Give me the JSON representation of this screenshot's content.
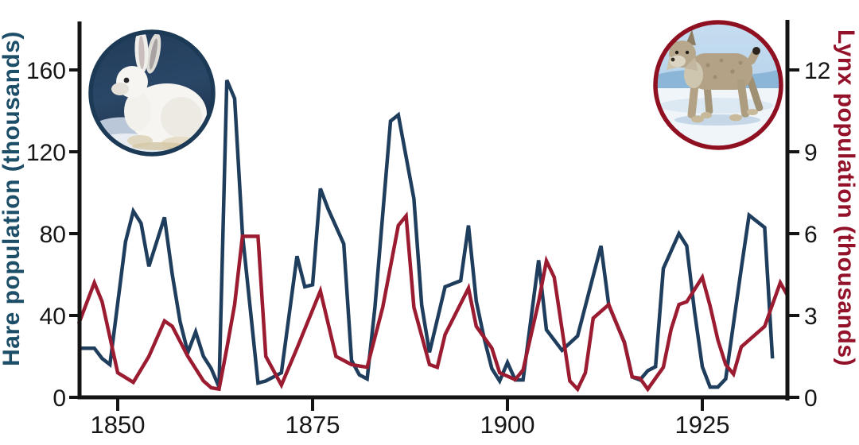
{
  "chart_data": {
    "type": "line",
    "title": "",
    "x_axis": {
      "tick_labels": [
        "1850",
        "1875",
        "1900",
        "1925"
      ],
      "tick_values": [
        1850,
        1875,
        1900,
        1925
      ],
      "range_years": [
        1845,
        1936
      ],
      "grid": false
    },
    "left_axis": {
      "title": "Hare population (thousands)",
      "color": "#1d4e68",
      "tick_labels": [
        "160",
        "120",
        "80",
        "40",
        "0"
      ],
      "tick_values": [
        160,
        120,
        80,
        40,
        0
      ],
      "lim": [
        0,
        184
      ]
    },
    "right_axis": {
      "title": "Lynx population (thousands)",
      "color": "#93122a",
      "tick_labels": [
        "12",
        "9",
        "6",
        "3",
        "0"
      ],
      "tick_values": [
        12,
        9,
        6,
        3,
        0
      ],
      "lim": [
        0,
        13.8
      ]
    },
    "legend": "none",
    "series": [
      {
        "name": "Hare population (thousands)",
        "axis": "left",
        "unit": "thousands",
        "color": "#1f3d5c",
        "points": [
          [
            1845,
            24
          ],
          [
            1847,
            24
          ],
          [
            1848,
            19
          ],
          [
            1849,
            16
          ],
          [
            1851,
            76
          ],
          [
            1852,
            91
          ],
          [
            1853,
            85
          ],
          [
            1854,
            64
          ],
          [
            1856,
            88
          ],
          [
            1857,
            60
          ],
          [
            1858,
            37
          ],
          [
            1859,
            22
          ],
          [
            1860,
            32
          ],
          [
            1861,
            20
          ],
          [
            1862,
            14
          ],
          [
            1863,
            5
          ],
          [
            1864,
            155
          ],
          [
            1865,
            146
          ],
          [
            1866,
            80
          ],
          [
            1868,
            7
          ],
          [
            1869,
            8
          ],
          [
            1871,
            12
          ],
          [
            1873,
            69
          ],
          [
            1874,
            54
          ],
          [
            1875,
            55
          ],
          [
            1876,
            102
          ],
          [
            1877,
            92
          ],
          [
            1879,
            75
          ],
          [
            1880,
            18
          ],
          [
            1881,
            11
          ],
          [
            1882,
            9
          ],
          [
            1883,
            44
          ],
          [
            1885,
            135
          ],
          [
            1886,
            138
          ],
          [
            1888,
            97
          ],
          [
            1889,
            45
          ],
          [
            1890,
            22
          ],
          [
            1892,
            54
          ],
          [
            1894,
            57
          ],
          [
            1895,
            84
          ],
          [
            1896,
            47
          ],
          [
            1897,
            29
          ],
          [
            1898,
            14
          ],
          [
            1899,
            8
          ],
          [
            1900,
            17
          ],
          [
            1901,
            8.5
          ],
          [
            1902,
            8.5
          ],
          [
            1904,
            67
          ],
          [
            1905,
            33
          ],
          [
            1907,
            23
          ],
          [
            1909,
            30
          ],
          [
            1912,
            74
          ],
          [
            1913,
            45
          ],
          [
            1915,
            27
          ],
          [
            1916,
            10
          ],
          [
            1917,
            8.5
          ],
          [
            1918,
            13
          ],
          [
            1919,
            15
          ],
          [
            1920,
            63
          ],
          [
            1922,
            80
          ],
          [
            1923,
            74
          ],
          [
            1924,
            42
          ],
          [
            1925,
            15
          ],
          [
            1926,
            5
          ],
          [
            1927,
            5
          ],
          [
            1928,
            9
          ],
          [
            1930,
            63
          ],
          [
            1931,
            89
          ],
          [
            1933,
            83
          ],
          [
            1934,
            19
          ]
        ]
      },
      {
        "name": "Lynx population (thousands)",
        "axis": "right",
        "unit": "thousands",
        "color": "#9b1c31",
        "points": [
          [
            1845,
            2.7
          ],
          [
            1847,
            4.2
          ],
          [
            1848,
            3.5
          ],
          [
            1850,
            0.9
          ],
          [
            1852,
            0.55
          ],
          [
            1854,
            1.5
          ],
          [
            1856,
            2.8
          ],
          [
            1857,
            2.6
          ],
          [
            1859,
            1.5
          ],
          [
            1861,
            0.6
          ],
          [
            1862,
            0.35
          ],
          [
            1863,
            0.3
          ],
          [
            1864,
            1.8
          ],
          [
            1865,
            3.4
          ],
          [
            1866,
            5.9
          ],
          [
            1868,
            5.9
          ],
          [
            1869,
            1.5
          ],
          [
            1871,
            0.45
          ],
          [
            1873,
            1.8
          ],
          [
            1876,
            3.9
          ],
          [
            1878,
            1.5
          ],
          [
            1880,
            1.2
          ],
          [
            1882,
            1.1
          ],
          [
            1884,
            3.3
          ],
          [
            1886,
            6.3
          ],
          [
            1887,
            6.65
          ],
          [
            1888,
            3.3
          ],
          [
            1890,
            1.2
          ],
          [
            1891,
            1.1
          ],
          [
            1892,
            2.3
          ],
          [
            1895,
            4.0
          ],
          [
            1896,
            2.6
          ],
          [
            1898,
            1.8
          ],
          [
            1899,
            0.9
          ],
          [
            1901,
            0.65
          ],
          [
            1902,
            1.0
          ],
          [
            1904,
            3.5
          ],
          [
            1905,
            5.0
          ],
          [
            1906,
            4.4
          ],
          [
            1908,
            0.6
          ],
          [
            1909,
            0.3
          ],
          [
            1910,
            0.9
          ],
          [
            1911,
            2.9
          ],
          [
            1913,
            3.4
          ],
          [
            1915,
            2.0
          ],
          [
            1916,
            0.75
          ],
          [
            1917,
            0.7
          ],
          [
            1918,
            0.3
          ],
          [
            1920,
            1.1
          ],
          [
            1921,
            2.5
          ],
          [
            1922,
            3.4
          ],
          [
            1923,
            3.5
          ],
          [
            1925,
            4.4
          ],
          [
            1926,
            3.35
          ],
          [
            1927,
            2.1
          ],
          [
            1928,
            1.2
          ],
          [
            1929,
            0.85
          ],
          [
            1930,
            1.85
          ],
          [
            1933,
            2.6
          ],
          [
            1935,
            4.2
          ],
          [
            1936,
            3.7
          ]
        ]
      }
    ]
  },
  "insets": {
    "hare_photo": {
      "icon": "snowshoe-hare-photo",
      "border_color": "#1c3a55"
    },
    "lynx_photo": {
      "icon": "canada-lynx-photo",
      "border_color": "#8e1021"
    }
  },
  "colors": {
    "background": "#ffffff",
    "axis_black": "#141414",
    "hare_line": "#1f3d5c",
    "lynx_line": "#9b1c31",
    "hare_label": "#1d4e68",
    "lynx_label": "#93122a"
  }
}
